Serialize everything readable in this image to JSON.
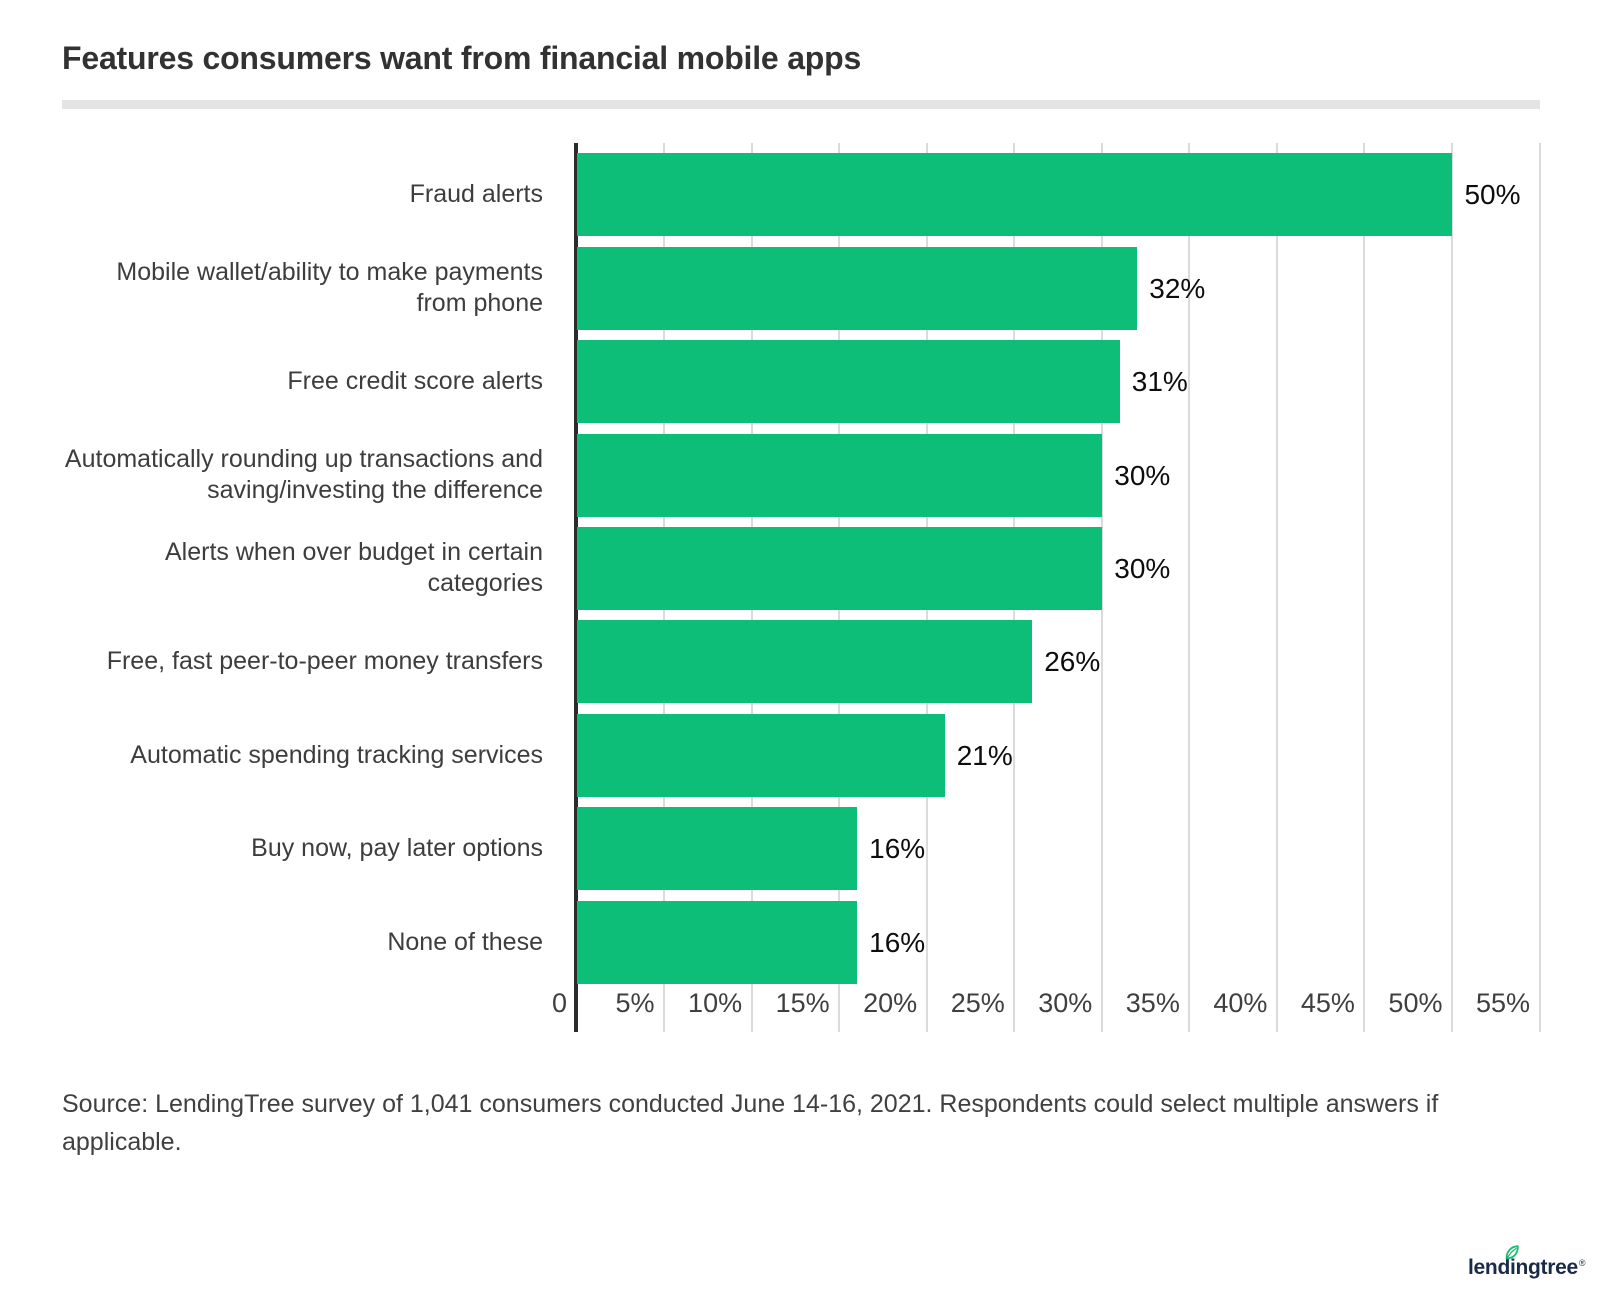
{
  "title": "Features consumers want from financial mobile apps",
  "source": "Source: LendingTree survey of 1,041 consumers conducted June 14-16, 2021. Respondents could select multiple answers if applicable.",
  "logo": {
    "text": "lendingtree",
    "reg": "®"
  },
  "colors": {
    "bar": "#0dbe78",
    "axis": "#2b2b2b",
    "grid": "#dbdbdb",
    "title": "#323232",
    "category_label": "#3d3d3d",
    "value_label": "#0d0d0d",
    "tick_label": "#3f3f3f",
    "divider": "#e4e4e4",
    "logo_navy": "#1a2b49",
    "leaf_green": "#1db974"
  },
  "chart_data": {
    "type": "bar",
    "orientation": "horizontal",
    "title": "Features consumers want from financial mobile apps",
    "categories": [
      "Fraud alerts",
      "Mobile wallet/ability to make payments from phone",
      "Free credit score alerts",
      "Automatically rounding up transactions and saving/investing the difference",
      "Alerts when over budget in certain categories",
      "Free, fast peer-to-peer money transfers",
      "Automatic spending tracking services",
      "Buy now, pay later options",
      "None of these"
    ],
    "values": [
      50,
      32,
      31,
      30,
      30,
      26,
      21,
      16,
      16
    ],
    "value_labels": [
      "50%",
      "32%",
      "31%",
      "30%",
      "30%",
      "26%",
      "21%",
      "16%",
      "16%"
    ],
    "x_ticks": [
      "0",
      "5%",
      "10%",
      "15%",
      "20%",
      "25%",
      "30%",
      "35%",
      "40%",
      "45%",
      "50%",
      "55%"
    ],
    "xlim": [
      0,
      55
    ],
    "xlabel": "",
    "ylabel": "",
    "grid": true,
    "legend": false
  }
}
